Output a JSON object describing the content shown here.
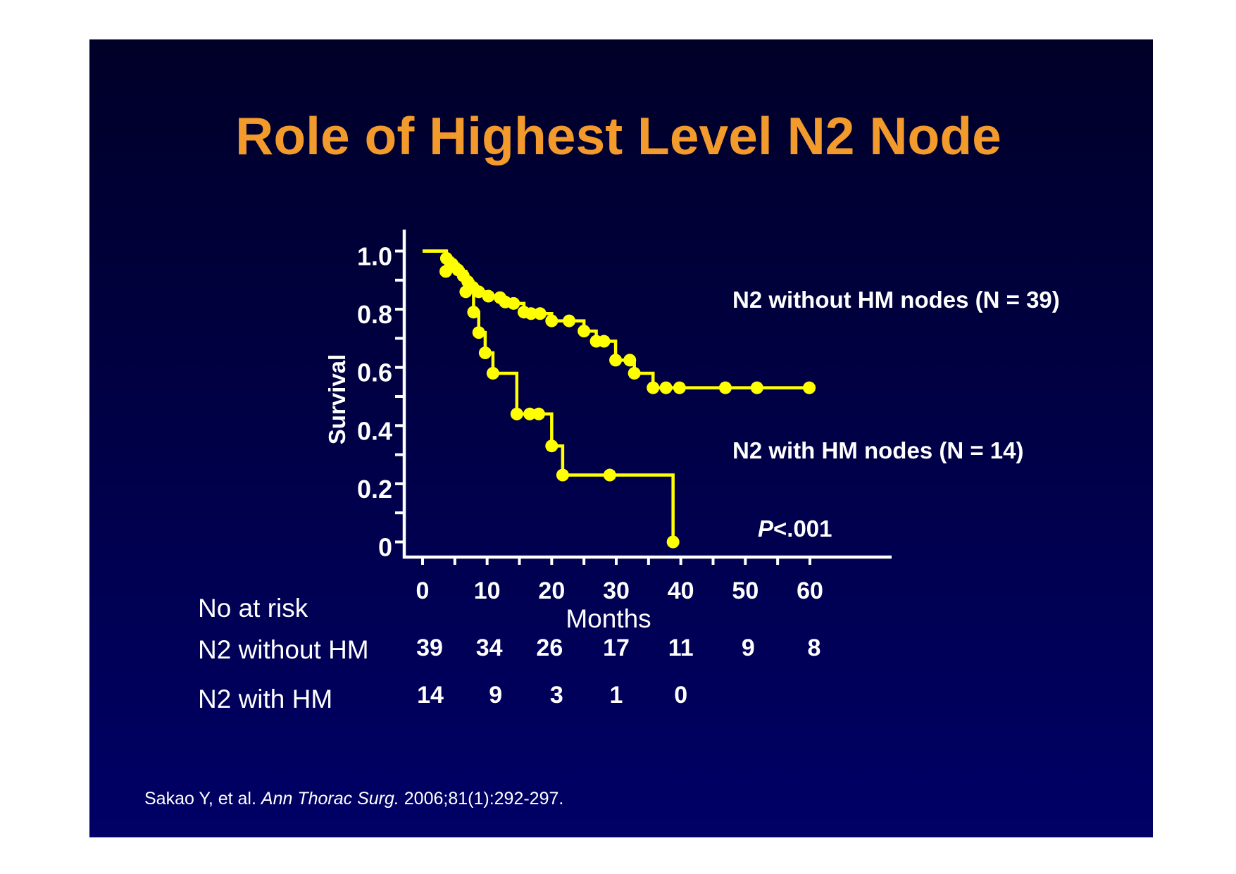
{
  "slide": {
    "title": "Role of Highest Level N2 Node",
    "citation": {
      "authors": "Sakao Y, et al.",
      "journal": "Ann Thorac Surg.",
      "details": "2006;81(1):292-297."
    }
  },
  "colors": {
    "page": "#ffffff",
    "slide_top": "#000028",
    "slide_bottom": "#000066",
    "title": "#f39a2c",
    "text": "#ffffff",
    "curve": "#ffff00"
  },
  "chart_data": {
    "type": "line",
    "step": true,
    "grid": false,
    "xlabel": "Months",
    "ylabel": "Survival",
    "xlim": [
      0,
      60
    ],
    "ylim": [
      0,
      1.0
    ],
    "x_ticks": [
      {
        "value": 0,
        "label": "0"
      },
      {
        "value": 10,
        "label": "10"
      },
      {
        "value": 20,
        "label": "20"
      },
      {
        "value": 30,
        "label": "30"
      },
      {
        "value": 40,
        "label": "40"
      },
      {
        "value": 50,
        "label": "50"
      },
      {
        "value": 60,
        "label": "60"
      }
    ],
    "y_ticks": [
      {
        "value": 1.0,
        "label": "1.0"
      },
      {
        "value": 0.8,
        "label": "0.8"
      },
      {
        "value": 0.6,
        "label": "0.6"
      },
      {
        "value": 0.4,
        "label": "0.4"
      },
      {
        "value": 0.2,
        "label": "0.2"
      },
      {
        "value": 0,
        "label": "0"
      }
    ],
    "series": [
      {
        "name": "N2 without HM nodes (N = 39)",
        "x": [
          0,
          3.7,
          4.6,
          5.5,
          6.3,
          7.0,
          7.8,
          8.7,
          10.2,
          12.0,
          12.8,
          14.1,
          15.7,
          16.8,
          18.2,
          20.0,
          22.7,
          25.0,
          26.9,
          28.1,
          29.9,
          32.1,
          32.8,
          35.7,
          37.7,
          39.8,
          46.9,
          51.8,
          59.9
        ],
        "y": [
          1.0,
          0.975,
          0.955,
          0.935,
          0.915,
          0.895,
          0.875,
          0.86,
          0.845,
          0.84,
          0.825,
          0.82,
          0.79,
          0.785,
          0.785,
          0.76,
          0.76,
          0.725,
          0.69,
          0.69,
          0.625,
          0.625,
          0.58,
          0.53,
          0.53,
          0.53,
          0.53,
          0.53,
          0.53
        ]
      },
      {
        "name": "N2 with HM nodes (N = 14)",
        "x": [
          0,
          3.6,
          6.7,
          7.9,
          8.7,
          9.7,
          10.9,
          14.6,
          16.6,
          18.0,
          20.0,
          21.7,
          29.0,
          38.8
        ],
        "y": [
          1.0,
          0.93,
          0.86,
          0.79,
          0.72,
          0.65,
          0.58,
          0.44,
          0.44,
          0.44,
          0.33,
          0.23,
          0.23,
          0.0
        ]
      }
    ],
    "annotation": {
      "italic": "P",
      "text": "<.001"
    }
  },
  "risk_table": {
    "header": "No at risk",
    "rows": [
      {
        "label": "N2 without HM",
        "values": [
          "39",
          "34",
          "26",
          "17",
          "11",
          "9",
          "8"
        ]
      },
      {
        "label": "N2 with HM",
        "values": [
          "14",
          "9",
          "3",
          "1",
          "0"
        ]
      }
    ]
  }
}
